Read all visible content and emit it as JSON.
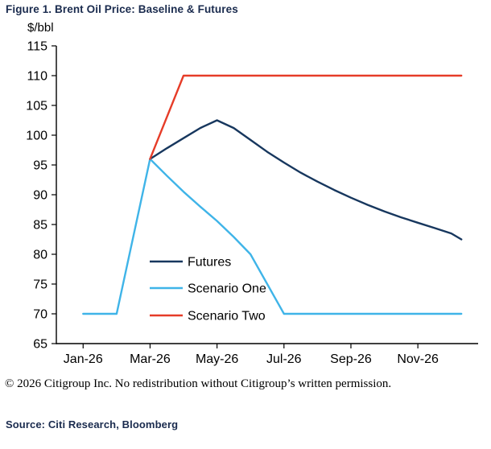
{
  "title": "Figure 1. Brent Oil Price: Baseline & Futures",
  "copyright": "© 2026 Citigroup Inc. No redistribution without Citigroup’s written permission.",
  "source": "Source: Citi Research, Bloomberg",
  "chart_data": {
    "type": "line",
    "title": "Figure 1. Brent Oil Price: Baseline & Futures",
    "unit_label": "$/bbl",
    "ylabel": "$/bbl",
    "xlabel": "",
    "ylim": [
      65,
      115
    ],
    "ytick_step": 5,
    "xlim": [
      -0.8,
      11.8
    ],
    "grid": false,
    "legend_position": "inside-lower-left",
    "x_ticks": [
      {
        "pos": 0,
        "label": "Jan-26"
      },
      {
        "pos": 2,
        "label": "Mar-26"
      },
      {
        "pos": 4,
        "label": "May-26"
      },
      {
        "pos": 6,
        "label": "Jul-26"
      },
      {
        "pos": 8,
        "label": "Sep-26"
      },
      {
        "pos": 10,
        "label": "Nov-26"
      }
    ],
    "series": [
      {
        "name": "Futures",
        "color": "#17375e",
        "points": [
          [
            2,
            96
          ],
          [
            2.5,
            97.8
          ],
          [
            3,
            99.5
          ],
          [
            3.5,
            101.2
          ],
          [
            4,
            102.5
          ],
          [
            4.5,
            101.2
          ],
          [
            5,
            99.2
          ],
          [
            5.5,
            97.2
          ],
          [
            6,
            95.4
          ],
          [
            6.5,
            93.7
          ],
          [
            7,
            92.2
          ],
          [
            7.5,
            90.8
          ],
          [
            8,
            89.5
          ],
          [
            8.5,
            88.3
          ],
          [
            9,
            87.2
          ],
          [
            9.5,
            86.2
          ],
          [
            10,
            85.3
          ],
          [
            10.5,
            84.4
          ],
          [
            11,
            83.5
          ],
          [
            11.3,
            82.5
          ]
        ]
      },
      {
        "name": "Scenario One",
        "color": "#3fb4e8",
        "points": [
          [
            0,
            70
          ],
          [
            1,
            70
          ],
          [
            2,
            96
          ],
          [
            2.5,
            93.2
          ],
          [
            3,
            90.5
          ],
          [
            3.5,
            88
          ],
          [
            4,
            85.6
          ],
          [
            4.5,
            82.9
          ],
          [
            5,
            80
          ],
          [
            6,
            70
          ],
          [
            11.3,
            70
          ]
        ]
      },
      {
        "name": "Scenario Two",
        "color": "#e63c28",
        "points": [
          [
            2,
            96
          ],
          [
            3,
            110
          ],
          [
            11.3,
            110
          ]
        ]
      }
    ]
  }
}
